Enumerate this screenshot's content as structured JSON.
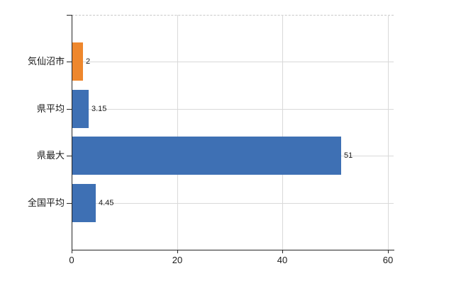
{
  "chart_data": {
    "type": "bar",
    "orientation": "horizontal",
    "title": "",
    "xlabel": "",
    "ylabel": "",
    "categories": [
      "気仙沼市",
      "県平均",
      "県最大",
      "全国平均"
    ],
    "values": [
      2,
      3.15,
      51,
      4.45
    ],
    "value_labels": [
      "2",
      "3.15",
      "51",
      "4.45"
    ],
    "bar_colors": [
      "#EE872D",
      "#3E70B4",
      "#3E70B4",
      "#3E70B4"
    ],
    "x_ticks": [
      0,
      20,
      40,
      60
    ],
    "x_tick_labels": [
      "0",
      "20",
      "40",
      "60"
    ],
    "xlim": [
      0,
      60
    ],
    "grid": true,
    "legend_position": "none",
    "colors": {
      "bar_blue": "#3E70B4",
      "bar_orange": "#EE872D",
      "axis": "#262626",
      "gridline": "#d9d9d9",
      "top_gridline_dashed": "#c8c8c8",
      "text": "#1a1a1a",
      "background": "#ffffff"
    }
  }
}
